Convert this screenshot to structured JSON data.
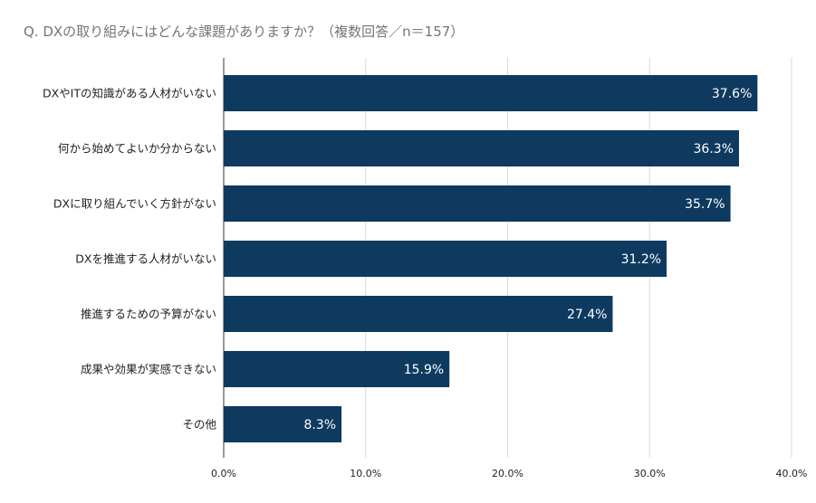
{
  "chart_data": {
    "type": "bar",
    "orientation": "horizontal",
    "title": "Q. DXの取り組みにはどんな課題がありますか？（複数回答／n＝157）",
    "categories": [
      "DXやITの知識がある人材がいない",
      "何から始めてよいか分からない",
      "DXに取り組んでいく方針がない",
      "DXを推進する人材がいない",
      "推進するための予算がない",
      "成果や効果が実感できない",
      "その他"
    ],
    "values": [
      37.6,
      36.3,
      35.7,
      31.2,
      27.4,
      15.9,
      8.3
    ],
    "data_labels": [
      "37.6%",
      "36.3%",
      "35.7%",
      "31.2%",
      "27.4%",
      "15.9%",
      "8.3%"
    ],
    "xlim": [
      0,
      40
    ],
    "xticks": [
      0,
      10,
      20,
      30,
      40
    ],
    "xtick_labels": [
      "0.0%",
      "10.0%",
      "20.0%",
      "30.0%",
      "40.0%"
    ],
    "xlabel": "",
    "ylabel": "",
    "grid": true,
    "legend": "none",
    "colors": {
      "bar": "#0e3a5f",
      "grid": "#d9d9d9",
      "axis": "#333333"
    }
  }
}
